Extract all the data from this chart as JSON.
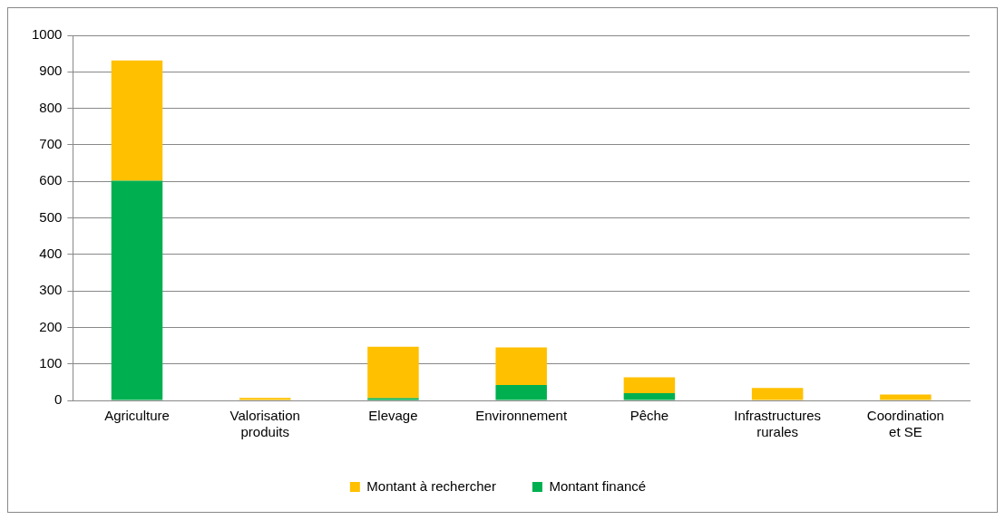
{
  "chart_data": {
    "type": "bar",
    "stacked": true,
    "categories": [
      "Agriculture",
      "Valorisation produits",
      "Elevage",
      "Environnement",
      "Pêche",
      "Infrastructures rurales",
      "Coordination et SE"
    ],
    "series": [
      {
        "name": "Montant financé",
        "color": "#00b050",
        "values": [
          602,
          0,
          6,
          42,
          20,
          0,
          0
        ]
      },
      {
        "name": "Montant à rechercher",
        "color": "#ffc000",
        "values": [
          329,
          7,
          141,
          103,
          43,
          34,
          16
        ]
      }
    ],
    "ylim": [
      0,
      1000
    ],
    "yticks": [
      0,
      100,
      200,
      300,
      400,
      500,
      600,
      700,
      800,
      900,
      1000
    ],
    "grid": "y",
    "legend": "bottom"
  }
}
